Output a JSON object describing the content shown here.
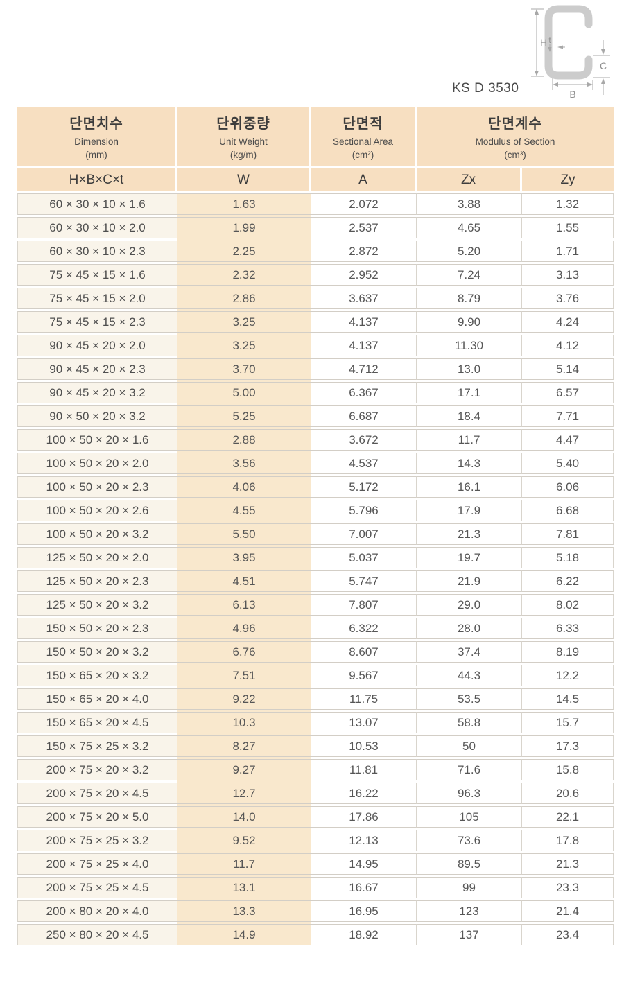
{
  "standard": "KS D 3530",
  "diagram": {
    "labels": {
      "h": "H",
      "t": "t",
      "c": "C",
      "b": "B"
    }
  },
  "table": {
    "columns": [
      {
        "kr": "단면치수",
        "en": "Dimension",
        "unit": "(mm)",
        "sub": "H×B×C×t"
      },
      {
        "kr": "단위중량",
        "en": "Unit Weight",
        "unit": "(kg/m)",
        "sub": "W"
      },
      {
        "kr": "단면적",
        "en": "Sectional Area",
        "unit": "(cm²)",
        "sub": "A"
      },
      {
        "kr": "단면계수",
        "en": "Modulus of Section",
        "unit": "(cm³)",
        "sub": [
          "Zx",
          "Zy"
        ]
      }
    ],
    "rows": [
      [
        "60 × 30 × 10 × 1.6",
        "1.63",
        "2.072",
        "3.88",
        "1.32"
      ],
      [
        "60 × 30 × 10 × 2.0",
        "1.99",
        "2.537",
        "4.65",
        "1.55"
      ],
      [
        "60 × 30 × 10 × 2.3",
        "2.25",
        "2.872",
        "5.20",
        "1.71"
      ],
      [
        "75 × 45 × 15 × 1.6",
        "2.32",
        "2.952",
        "7.24",
        "3.13"
      ],
      [
        "75 × 45 × 15 × 2.0",
        "2.86",
        "3.637",
        "8.79",
        "3.76"
      ],
      [
        "75 × 45 × 15 × 2.3",
        "3.25",
        "4.137",
        "9.90",
        "4.24"
      ],
      [
        "90 × 45 × 20 × 2.0",
        "3.25",
        "4.137",
        "11.30",
        "4.12"
      ],
      [
        "90 × 45 × 20 × 2.3",
        "3.70",
        "4.712",
        "13.0",
        "5.14"
      ],
      [
        "90 × 45 × 20 × 3.2",
        "5.00",
        "6.367",
        "17.1",
        "6.57"
      ],
      [
        "90 × 50 × 20 × 3.2",
        "5.25",
        "6.687",
        "18.4",
        "7.71"
      ],
      [
        "100 × 50 × 20 × 1.6",
        "2.88",
        "3.672",
        "11.7",
        "4.47"
      ],
      [
        "100 × 50 × 20 × 2.0",
        "3.56",
        "4.537",
        "14.3",
        "5.40"
      ],
      [
        "100 × 50 × 20 × 2.3",
        "4.06",
        "5.172",
        "16.1",
        "6.06"
      ],
      [
        "100 × 50 × 20 × 2.6",
        "4.55",
        "5.796",
        "17.9",
        "6.68"
      ],
      [
        "100 × 50 × 20 × 3.2",
        "5.50",
        "7.007",
        "21.3",
        "7.81"
      ],
      [
        "125 × 50 × 20 × 2.0",
        "3.95",
        "5.037",
        "19.7",
        "5.18"
      ],
      [
        "125 × 50 × 20 × 2.3",
        "4.51",
        "5.747",
        "21.9",
        "6.22"
      ],
      [
        "125 × 50 × 20 × 3.2",
        "6.13",
        "7.807",
        "29.0",
        "8.02"
      ],
      [
        "150 × 50 × 20 × 2.3",
        "4.96",
        "6.322",
        "28.0",
        "6.33"
      ],
      [
        "150 × 50 × 20 × 3.2",
        "6.76",
        "8.607",
        "37.4",
        "8.19"
      ],
      [
        "150 × 65 × 20 × 3.2",
        "7.51",
        "9.567",
        "44.3",
        "12.2"
      ],
      [
        "150 × 65 × 20 × 4.0",
        "9.22",
        "11.75",
        "53.5",
        "14.5"
      ],
      [
        "150 × 65 × 20 × 4.5",
        "10.3",
        "13.07",
        "58.8",
        "15.7"
      ],
      [
        "150 × 75 × 25 × 3.2",
        "8.27",
        "10.53",
        "50",
        "17.3"
      ],
      [
        "200 × 75 × 20 × 3.2",
        "9.27",
        "11.81",
        "71.6",
        "15.8"
      ],
      [
        "200 × 75 × 20 × 4.5",
        "12.7",
        "16.22",
        "96.3",
        "20.6"
      ],
      [
        "200 × 75 × 20 × 5.0",
        "14.0",
        "17.86",
        "105",
        "22.1"
      ],
      [
        "200 × 75 × 25 × 3.2",
        "9.52",
        "12.13",
        "73.6",
        "17.8"
      ],
      [
        "200 × 75 × 25 × 4.0",
        "11.7",
        "14.95",
        "89.5",
        "21.3"
      ],
      [
        "200 × 75 × 25 × 4.5",
        "13.1",
        "16.67",
        "99",
        "23.3"
      ],
      [
        "200 × 80 × 20 × 4.0",
        "13.3",
        "16.95",
        "123",
        "21.4"
      ],
      [
        "250 × 80 × 20 × 4.5",
        "14.9",
        "18.92",
        "137",
        "23.4"
      ]
    ]
  },
  "colors": {
    "header_bg": "#f7dfc1",
    "weight_col_bg": "#f9e8cd",
    "dimension_col_bg": "#f9f4ea",
    "border": "#d3cec6",
    "shape_gray": "#cccccc"
  }
}
